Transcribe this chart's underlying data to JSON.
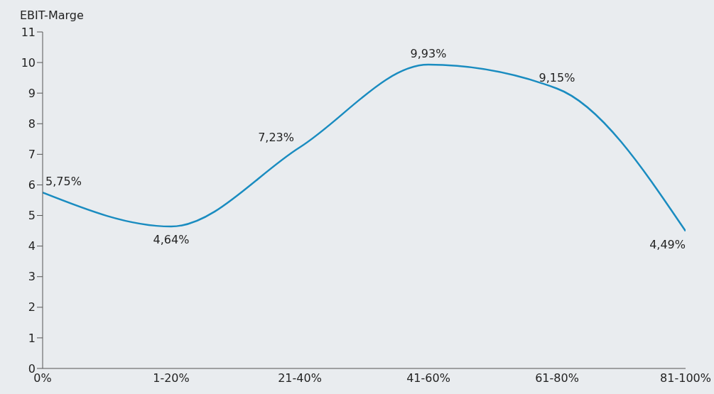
{
  "chart_data": {
    "type": "line",
    "ylabel": "EBIT-Marge",
    "categories": [
      "0%",
      "1-20%",
      "21-40%",
      "41-60%",
      "61-80%",
      "81-100%"
    ],
    "series": [
      {
        "color": "#1a8cc0",
        "values": [
          5.75,
          4.64,
          7.23,
          9.93,
          9.15,
          4.49
        ],
        "value_labels": [
          "5,75%",
          "4,64%",
          "7,23%",
          "9,93%",
          "9,15%",
          "4,49%"
        ]
      }
    ],
    "ylim": [
      0,
      11
    ],
    "yticks": [
      0,
      1,
      2,
      3,
      4,
      5,
      6,
      7,
      8,
      9,
      10,
      11
    ],
    "grid": false,
    "legend": false,
    "marker": "none",
    "line_style": "solid"
  }
}
